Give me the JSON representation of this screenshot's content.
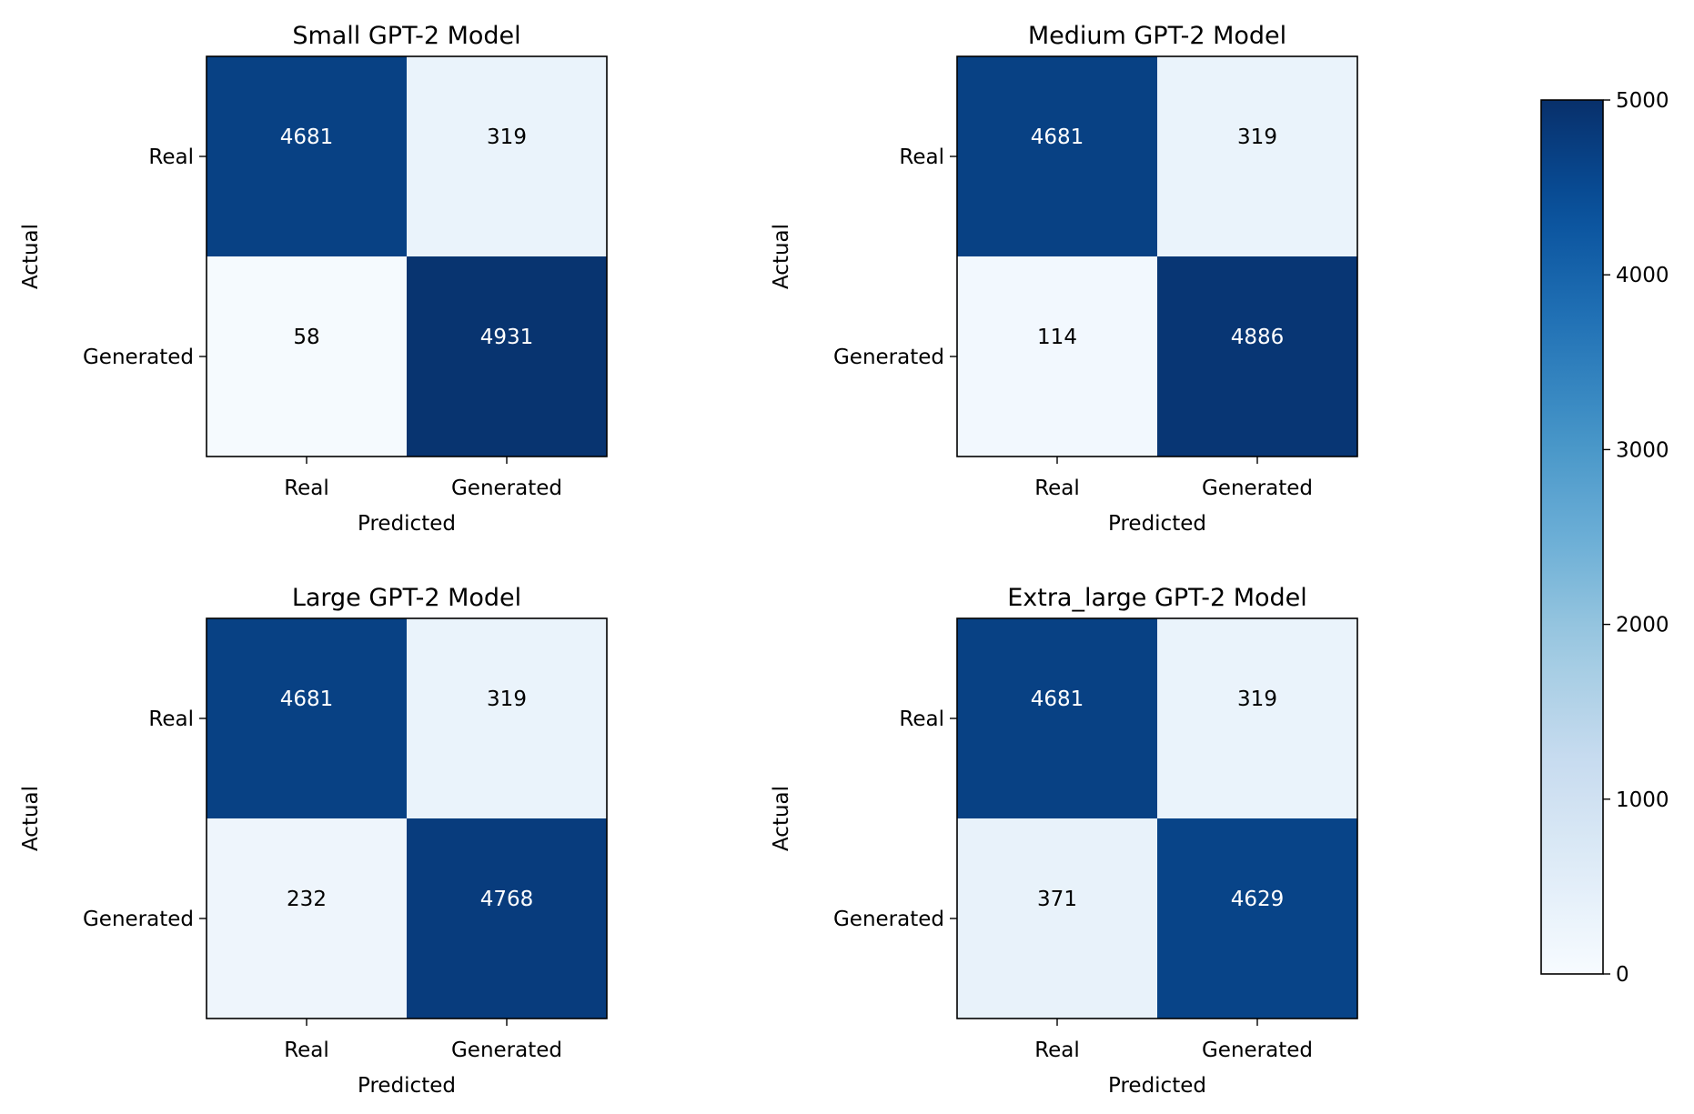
{
  "chart_data": [
    {
      "type": "heatmap",
      "title": "Small GPT-2 Model",
      "xlabel": "Predicted",
      "ylabel": "Actual",
      "x_categories": [
        "Real",
        "Generated"
      ],
      "y_categories": [
        "Real",
        "Generated"
      ],
      "values": [
        [
          4681,
          319
        ],
        [
          58,
          4931
        ]
      ]
    },
    {
      "type": "heatmap",
      "title": "Medium GPT-2 Model",
      "xlabel": "Predicted",
      "ylabel": "Actual",
      "x_categories": [
        "Real",
        "Generated"
      ],
      "y_categories": [
        "Real",
        "Generated"
      ],
      "values": [
        [
          4681,
          319
        ],
        [
          114,
          4886
        ]
      ]
    },
    {
      "type": "heatmap",
      "title": "Large GPT-2 Model",
      "xlabel": "Predicted",
      "ylabel": "Actual",
      "x_categories": [
        "Real",
        "Generated"
      ],
      "y_categories": [
        "Real",
        "Generated"
      ],
      "values": [
        [
          4681,
          319
        ],
        [
          232,
          4768
        ]
      ]
    },
    {
      "type": "heatmap",
      "title": "Extra_large GPT-2 Model",
      "xlabel": "Predicted",
      "ylabel": "Actual",
      "x_categories": [
        "Real",
        "Generated"
      ],
      "y_categories": [
        "Real",
        "Generated"
      ],
      "values": [
        [
          4681,
          319
        ],
        [
          371,
          4629
        ]
      ]
    }
  ],
  "colorbar": {
    "colormap": "Blues",
    "range": [
      0,
      5000
    ],
    "ticks": [
      0,
      1000,
      2000,
      3000,
      4000,
      5000
    ]
  }
}
